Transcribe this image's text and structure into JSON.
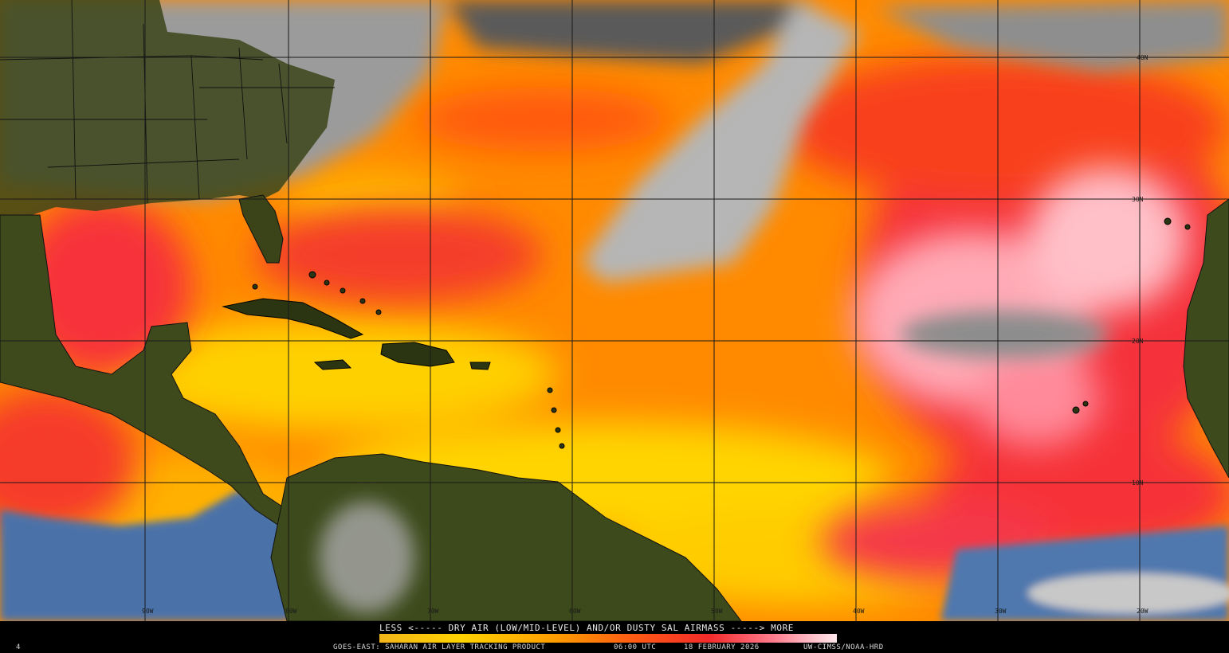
{
  "legend": {
    "title": "LESS <----- DRY AIR (LOW/MID-LEVEL) AND/OR DUSTY SAL AIRMASS -----> MORE"
  },
  "footer": {
    "left_mark": "4",
    "product": "GOES-EAST: SAHARAN AIR LAYER TRACKING PRODUCT",
    "time": "06:00 UTC",
    "date": "18 FEBRUARY 2026",
    "credit": "UW-CIMSS/NOAA-HRD"
  },
  "latitude_labels": [
    "40N",
    "30N",
    "20N",
    "10N"
  ],
  "longitude_labels": [
    "90W",
    "80W",
    "70W",
    "60W",
    "50W",
    "40W",
    "30W",
    "20W"
  ],
  "colors": {
    "land": "#3f4a1c",
    "ocean_clear": "#4d73a6",
    "cloud": "#a9a9a9",
    "sal_low": "#ffd200",
    "sal_mid": "#ff9e00",
    "sal_high": "#f22a2a",
    "sal_max": "#ffb4c0"
  }
}
